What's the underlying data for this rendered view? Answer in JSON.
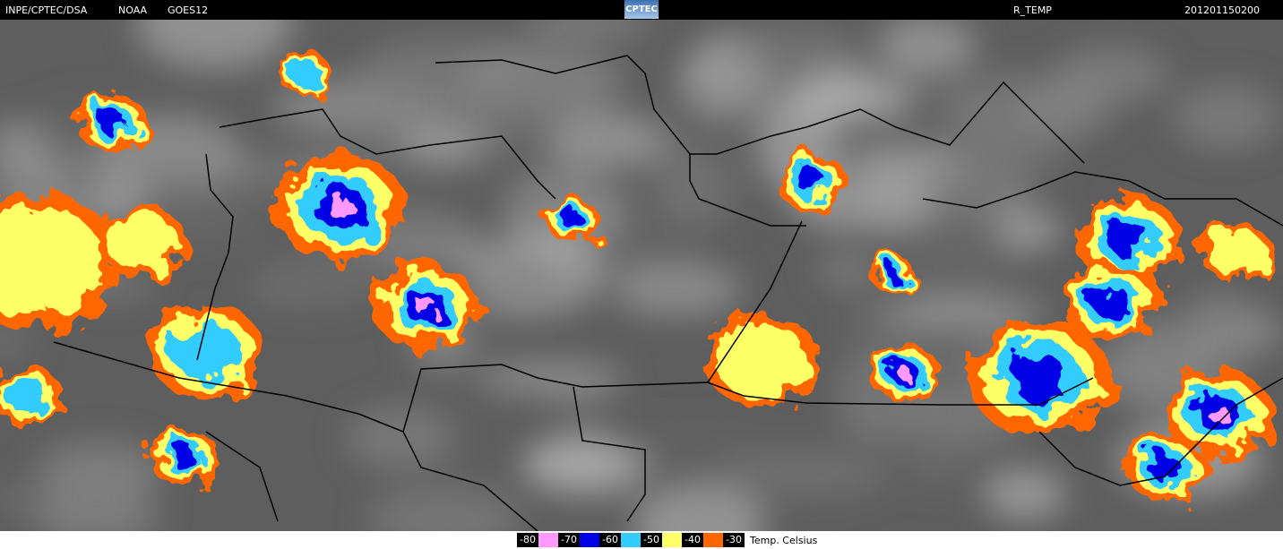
{
  "header": {
    "source": "INPE/CPTEC/DSA",
    "agency": "NOAA",
    "satellite": "GOES12",
    "logo": "CPTEC",
    "product": "R_TEMP",
    "timestamp": "201201150200"
  },
  "legend": {
    "labels": [
      -80,
      -70,
      -60,
      -50,
      -40,
      -30
    ],
    "colors": [
      "#ff99ff",
      "#0000e6",
      "#33ccff",
      "#ffff66",
      "#ff6600"
    ],
    "unit": "Temp. Celsius"
  }
}
